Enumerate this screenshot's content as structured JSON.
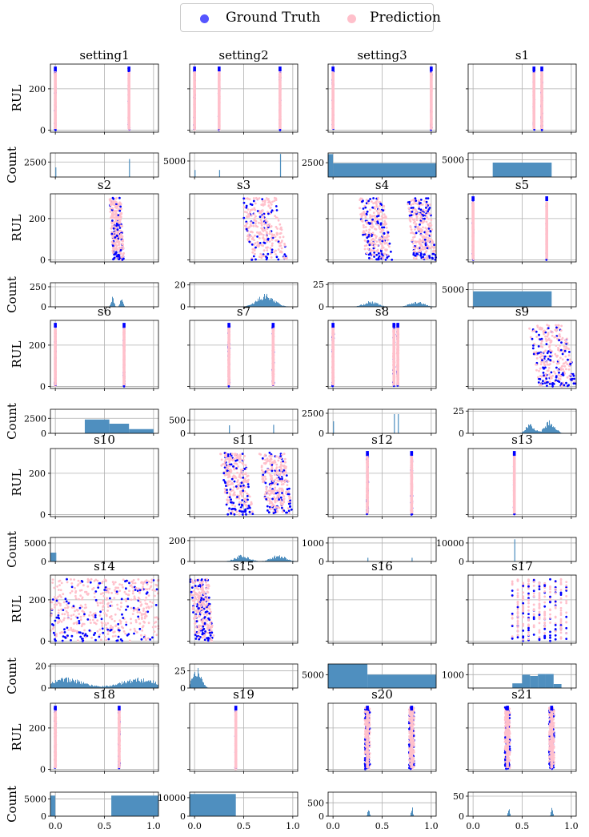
{
  "legend": {
    "items": [
      {
        "label": "Ground Truth",
        "color": "#0000ff"
      },
      {
        "label": "Prediction",
        "color": "#ffc0cb"
      }
    ]
  },
  "colors": {
    "hist": "#4f8fbf",
    "grid": "#b0b0b0",
    "gt": "#0000ff",
    "pred": "#ffc0cb"
  },
  "chart_data": {
    "type": "scatter",
    "description_axes": {
      "scatter_ylabel": "RUL",
      "hist_ylabel": "Count"
    },
    "rul_ticks": [
      0,
      200
    ],
    "rul_range": [
      -10,
      320
    ],
    "x_ticks": [
      0.0,
      0.5,
      1.0
    ],
    "x_tick_labels": [
      "0.0",
      "0.5",
      "1.0"
    ],
    "x_range": [
      -0.05,
      1.05
    ],
    "panels": [
      {
        "title": "setting1",
        "clusters": [
          [
            0.0,
            0.0,
            0,
            300
          ],
          [
            0.75,
            0.75,
            0,
            300
          ]
        ],
        "spread": 0.004,
        "hist": {
          "ymax": 4000,
          "ticks": [
            2500
          ],
          "bars": [
            [
              0.0,
              0.01,
              1600
            ],
            [
              0.75,
              0.76,
              3000
            ]
          ]
        }
      },
      {
        "title": "setting2",
        "clusters": [
          [
            0.0,
            0.0,
            0,
            300
          ],
          [
            0.25,
            0.25,
            0,
            300
          ],
          [
            0.87,
            0.87,
            0,
            300
          ]
        ],
        "spread": 0.004,
        "hist": {
          "ymax": 7500,
          "ticks": [
            5000
          ],
          "bars": [
            [
              0.0,
              0.01,
              2200
            ],
            [
              0.25,
              0.26,
              2200
            ],
            [
              0.87,
              0.88,
              7200
            ]
          ]
        }
      },
      {
        "title": "setting3",
        "clusters": [
          [
            0.0,
            0.0,
            0,
            300
          ],
          [
            1.0,
            1.0,
            0,
            300
          ]
        ],
        "spread": 0.004,
        "hist": {
          "ymax": 4200,
          "ticks": [
            2500
          ],
          "bars": [
            [
              -0.05,
              0.0,
              4000
            ],
            [
              0.0,
              1.05,
              2400
            ]
          ]
        }
      },
      {
        "title": "s1",
        "clusters": [
          [
            0.62,
            0.62,
            0,
            300
          ],
          [
            0.7,
            0.7,
            0,
            300
          ]
        ],
        "spread": 0.004,
        "hist": {
          "ymax": 7000,
          "ticks": [
            5000
          ],
          "bars": [
            [
              0.2,
              0.8,
              4200
            ]
          ]
        }
      },
      {
        "title": "s2",
        "clusters": [
          [
            0.55,
            0.7,
            0,
            300
          ]
        ],
        "spread": 0.03,
        "style": "blob",
        "hist": {
          "ymax": 300,
          "ticks": [
            0,
            250
          ],
          "bumps": [
            [
              0.58,
              0.02,
              120
            ],
            [
              0.67,
              0.02,
              110
            ]
          ]
        }
      },
      {
        "title": "s3",
        "clusters": [
          [
            0.45,
            0.95,
            0,
            300
          ]
        ],
        "spread": 0.06,
        "style": "blob",
        "hist": {
          "ymax": 22,
          "ticks": [
            0,
            20
          ],
          "bumps": [
            [
              0.72,
              0.12,
              11
            ]
          ]
        }
      },
      {
        "title": "s4",
        "clusters": [
          [
            0.25,
            0.6,
            0,
            300
          ],
          [
            0.75,
            1.05,
            0,
            300
          ]
        ],
        "spread": 0.06,
        "style": "blob",
        "hist": {
          "ymax": 27,
          "ticks": [
            0,
            25
          ],
          "bumps": [
            [
              0.38,
              0.1,
              6
            ],
            [
              0.85,
              0.1,
              6
            ]
          ]
        }
      },
      {
        "title": "s5",
        "clusters": [
          [
            0.0,
            0.0,
            0,
            300
          ],
          [
            0.75,
            0.75,
            0,
            300
          ]
        ],
        "spread": 0.004,
        "hist": {
          "ymax": 7000,
          "ticks": [
            5000
          ],
          "bars": [
            [
              0.0,
              0.8,
              4500
            ]
          ]
        }
      },
      {
        "title": "s6",
        "clusters": [
          [
            0.0,
            0.0,
            0,
            300
          ],
          [
            0.7,
            0.7,
            0,
            300
          ]
        ],
        "spread": 0.004,
        "hist": {
          "ymax": 4000,
          "ticks": [
            0,
            2500
          ],
          "bars": [
            [
              0.3,
              0.55,
              2300
            ],
            [
              0.55,
              0.75,
              1600
            ],
            [
              0.75,
              1.0,
              700
            ]
          ]
        }
      },
      {
        "title": "s7",
        "clusters": [
          [
            0.35,
            0.35,
            0,
            300
          ],
          [
            0.8,
            0.8,
            0,
            300
          ]
        ],
        "spread": 0.006,
        "hist": {
          "ymax": 900,
          "ticks": [
            0,
            500
          ],
          "bars": [
            [
              0.35,
              0.36,
              300
            ],
            [
              0.8,
              0.81,
              320
            ]
          ]
        }
      },
      {
        "title": "s8",
        "clusters": [
          [
            0.0,
            0.0,
            0,
            300
          ],
          [
            0.62,
            0.62,
            0,
            300
          ],
          [
            0.66,
            0.66,
            0,
            300
          ]
        ],
        "spread": 0.006,
        "hist": {
          "ymax": 3000,
          "ticks": [
            0,
            2500
          ],
          "bars": [
            [
              0.0,
              0.01,
              1500
            ],
            [
              0.62,
              0.63,
              2400
            ],
            [
              0.66,
              0.67,
              2400
            ]
          ]
        }
      },
      {
        "title": "s9",
        "clusters": [
          [
            0.55,
            1.05,
            0,
            300
          ]
        ],
        "spread": 0.06,
        "style": "blob",
        "hist": {
          "ymax": 27,
          "ticks": [
            0,
            25
          ],
          "bumps": [
            [
              0.58,
              0.06,
              11
            ],
            [
              0.78,
              0.07,
              14
            ]
          ]
        }
      },
      {
        "title": "s10",
        "clusters": [],
        "spread": 0.004,
        "hist": {
          "ymax": 6500,
          "ticks": [
            0,
            5000
          ],
          "bars": [
            [
              -0.05,
              0.0,
              2400
            ],
            [
              0.0,
              0.0,
              2400
            ]
          ]
        }
      },
      {
        "title": "s11",
        "clusters": [
          [
            0.25,
            0.6,
            0,
            300
          ],
          [
            0.65,
            1.0,
            0,
            300
          ]
        ],
        "spread": 0.06,
        "style": "blob",
        "hist": {
          "ymax": 230,
          "ticks": [
            0,
            200
          ],
          "bumps": [
            [
              0.48,
              0.1,
              60
            ],
            [
              0.85,
              0.1,
              60
            ]
          ]
        }
      },
      {
        "title": "s12",
        "clusters": [
          [
            0.35,
            0.35,
            0,
            300
          ],
          [
            0.8,
            0.8,
            0,
            300
          ]
        ],
        "spread": 0.006,
        "hist": {
          "ymax": 1300,
          "ticks": [
            0,
            1000
          ],
          "bars": [
            [
              0.35,
              0.36,
              200
            ],
            [
              0.8,
              0.81,
              200
            ]
          ]
        }
      },
      {
        "title": "s13",
        "clusters": [
          [
            0.42,
            0.42,
            0,
            300
          ]
        ],
        "spread": 0.004,
        "hist": {
          "ymax": 13000,
          "ticks": [
            0,
            10000
          ],
          "bars": [
            [
              0.42,
              0.43,
              12000
            ]
          ]
        }
      },
      {
        "title": "s14",
        "clusters": [
          [
            -0.05,
            1.05,
            0,
            300
          ]
        ],
        "spread": 0.2,
        "style": "wide",
        "hist": {
          "ymax": 22,
          "ticks": [
            0,
            20
          ],
          "bumps": [
            [
              0.1,
              0.25,
              9
            ],
            [
              0.85,
              0.25,
              9
            ]
          ]
        }
      },
      {
        "title": "s15",
        "clusters": [
          [
            -0.05,
            0.2,
            0,
            300
          ]
        ],
        "spread": 0.05,
        "style": "blob",
        "hist": {
          "ymax": 35,
          "ticks": [
            0,
            25
          ],
          "bumps": [
            [
              0.02,
              0.06,
              30
            ]
          ]
        }
      },
      {
        "title": "s16",
        "clusters": [],
        "spread": 0.004,
        "hist": {
          "ymax": 9000,
          "ticks": [
            5000
          ],
          "bars": [
            [
              -0.05,
              0.35,
              9000
            ],
            [
              0.35,
              1.05,
              5000
            ]
          ]
        }
      },
      {
        "title": "s17",
        "clusters": [
          [
            0.4,
            0.95,
            0,
            300
          ]
        ],
        "spread": 0.06,
        "style": "stripes",
        "hist": {
          "ymax": 1800,
          "ticks": [
            1000
          ],
          "bars": [
            [
              0.4,
              0.5,
              350
            ],
            [
              0.5,
              0.58,
              1000
            ],
            [
              0.58,
              0.66,
              900
            ],
            [
              0.66,
              0.74,
              1050
            ],
            [
              0.74,
              0.82,
              1050
            ],
            [
              0.82,
              0.9,
              300
            ]
          ]
        }
      },
      {
        "title": "s18",
        "clusters": [
          [
            0.0,
            0.0,
            0,
            300
          ],
          [
            0.65,
            0.65,
            0,
            300
          ]
        ],
        "spread": 0.006,
        "hist": {
          "ymax": 7000,
          "ticks": [
            0,
            5000
          ],
          "bars": [
            [
              -0.05,
              0.0,
              6000
            ],
            [
              0.57,
              1.05,
              6000
            ]
          ]
        }
      },
      {
        "title": "s19",
        "clusters": [
          [
            0.42,
            0.42,
            0,
            300
          ]
        ],
        "spread": 0.004,
        "hist": {
          "ymax": 13000,
          "ticks": [
            0,
            10000
          ],
          "bars": [
            [
              -0.05,
              0.42,
              12000
            ]
          ]
        }
      },
      {
        "title": "s20",
        "clusters": [
          [
            0.35,
            0.35,
            0,
            300
          ],
          [
            0.8,
            0.8,
            0,
            300
          ]
        ],
        "spread": 0.025,
        "style": "thinblob",
        "hist": {
          "ymax": 900,
          "ticks": [
            0,
            500
          ],
          "bumps": [
            [
              0.36,
              0.012,
              380
            ],
            [
              0.8,
              0.012,
              380
            ]
          ]
        }
      },
      {
        "title": "s21",
        "clusters": [
          [
            0.35,
            0.35,
            0,
            300
          ],
          [
            0.8,
            0.8,
            0,
            300
          ]
        ],
        "spread": 0.025,
        "style": "thinblob",
        "hist": {
          "ymax": 60,
          "ticks": [
            0,
            50
          ],
          "bumps": [
            [
              0.36,
              0.012,
              22
            ],
            [
              0.8,
              0.012,
              22
            ]
          ]
        }
      }
    ]
  }
}
